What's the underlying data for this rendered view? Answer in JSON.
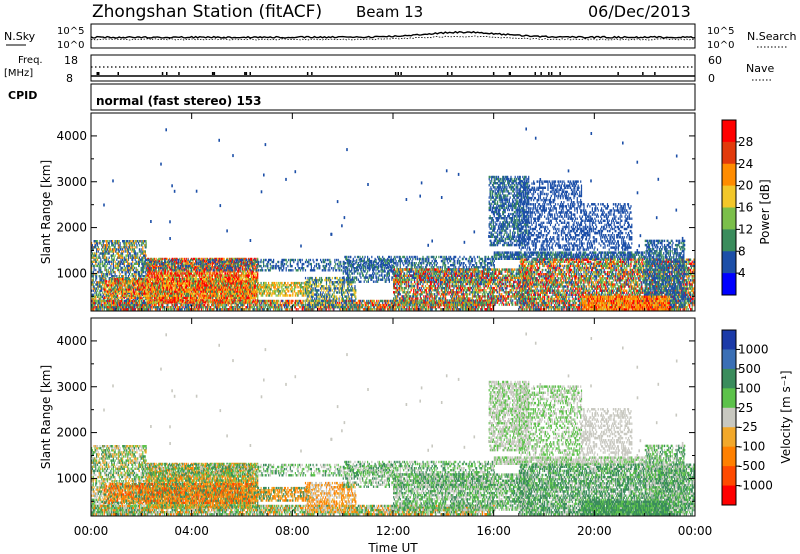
{
  "header": {
    "title": "Zhongshan Station (fitACF)",
    "beam": "Beam 13",
    "date": "06/Dec/2013"
  },
  "noise_panel": {
    "left_label": "N.Sky",
    "right_label": "N.Search",
    "left_ticks": [
      "10^5",
      "10^0"
    ],
    "right_ticks": [
      "10^5",
      "10^0"
    ]
  },
  "freq_panel": {
    "left_label_1": "Freq.",
    "left_label_2": "[MHz]",
    "right_label": "Nave",
    "left_ticks": [
      "18",
      "8"
    ],
    "right_ticks": [
      "60",
      "0"
    ]
  },
  "cpid": {
    "label": "CPID",
    "mode": "normal (fast stereo) 153"
  },
  "chart_data": [
    {
      "type": "heatmap",
      "name": "power",
      "ylabel": "Slant Range [km]",
      "ylim": [
        180,
        4500
      ],
      "yticks": [
        "4000",
        "3000",
        "2000",
        "1000"
      ],
      "colorbar_label": "Power [dB]",
      "colorbar_ticks": [
        "28",
        "24",
        "20",
        "16",
        "12",
        "8",
        "4"
      ],
      "colorbar_colors": [
        "#ff0000",
        "#e23a0c",
        "#ff8c00",
        "#f2c72a",
        "#7bbf4a",
        "#3a8c5c",
        "#1c4fa8",
        "#0000ff"
      ],
      "x_range_hours": [
        0,
        24
      ]
    },
    {
      "type": "heatmap",
      "name": "velocity",
      "ylabel": "Slant Range [km]",
      "ylim": [
        180,
        4500
      ],
      "yticks": [
        "4000",
        "3000",
        "2000",
        "1000"
      ],
      "colorbar_label": "Velocity [m s⁻¹]",
      "colorbar_ticks": [
        "1000",
        "500",
        "100",
        "25",
        "-25",
        "-100",
        "-500",
        "-1000"
      ],
      "colorbar_colors": [
        "#1b3aa8",
        "#3a6fb5",
        "#3a8c5c",
        "#5cc24a",
        "#c8c8c0",
        "#f2a82a",
        "#ff8000",
        "#ff4a00",
        "#ff0000"
      ],
      "x_range_hours": [
        0,
        24
      ]
    }
  ],
  "xaxis": {
    "ticks": [
      "00:00",
      "04:00",
      "08:00",
      "12:00",
      "16:00",
      "20:00",
      "00:00"
    ],
    "label": "Time UT"
  }
}
